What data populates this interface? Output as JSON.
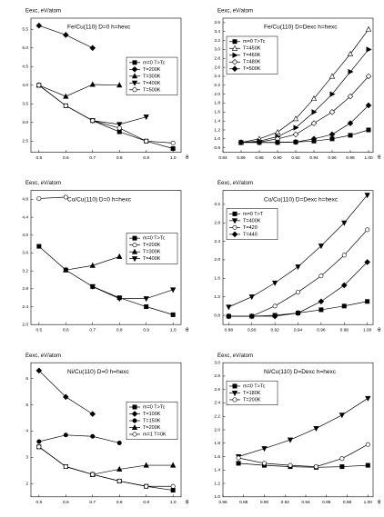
{
  "chart_data": [
    {
      "type": "line",
      "title": "Fe/Cu(110) D=0 h=hexc",
      "ylabel": "Eexc, eV/atom",
      "xlabel": "θ",
      "legend": "center right",
      "xlim": [
        0.47,
        1.03
      ],
      "ylim": [
        2.2,
        5.8
      ],
      "xticks": [
        0.5,
        0.6,
        0.7,
        0.8,
        0.9,
        {
          "value": 1,
          "label": "1.0"
        }
      ],
      "yticks": [
        2.5,
        {
          "value": 3,
          "label": "3.0"
        },
        3.5,
        {
          "value": 4,
          "label": "4.0"
        },
        4.5,
        {
          "value": 5,
          "label": "5.0"
        },
        5.5
      ],
      "series": [
        {
          "name": "m=0 T>Tc",
          "color": "#000000",
          "marker": "square",
          "filled": true,
          "x": [
            0.5,
            0.6,
            0.7,
            0.8,
            0.9,
            1.0
          ],
          "values": [
            4.0,
            3.45,
            3.05,
            2.75,
            2.5,
            2.3
          ]
        },
        {
          "name": "T=200K",
          "color": "#000000",
          "marker": "diamond",
          "filled": true,
          "x": [
            0.5,
            0.6,
            0.7
          ],
          "values": [
            5.6,
            5.35,
            5.0
          ]
        },
        {
          "name": "T=300K",
          "color": "#000000",
          "marker": "triangle-up",
          "filled": true,
          "x": [
            0.5,
            0.6,
            0.7,
            0.8
          ],
          "values": [
            4.0,
            3.7,
            4.02,
            4.0
          ]
        },
        {
          "name": "T=400K",
          "color": "#000000",
          "marker": "triangle-down",
          "filled": true,
          "x": [
            0.7,
            0.8,
            0.9
          ],
          "values": [
            3.05,
            2.95,
            3.15
          ]
        },
        {
          "name": "T=500K",
          "color": "#000000",
          "marker": "circle",
          "filled": false,
          "x": [
            0.5,
            0.6,
            0.7,
            0.8,
            0.9,
            1.0
          ],
          "values": [
            4.0,
            3.45,
            3.05,
            2.85,
            2.5,
            2.45
          ]
        }
      ]
    },
    {
      "type": "line",
      "title": "Fe/Cu(110) D=Dexc h=hexc",
      "ylabel": "Eexc, eV/atom",
      "xlabel": "θ",
      "legend": "upper left",
      "xlim": [
        0.84,
        1.005
      ],
      "ylim": [
        0.7,
        3.7
      ],
      "xticks": [
        0.84,
        0.86,
        0.88,
        {
          "value": 0.9,
          "label": "0.90"
        },
        0.92,
        0.94,
        0.96,
        0.98,
        {
          "value": 1,
          "label": "1.00"
        }
      ],
      "yticks": [
        0.8,
        {
          "value": 1,
          "label": "1.0"
        },
        1.2,
        1.4,
        1.6,
        1.8,
        {
          "value": 2,
          "label": "2.0"
        },
        2.2,
        2.4,
        2.6,
        2.8,
        {
          "value": 3,
          "label": "3.0"
        },
        3.2,
        3.4,
        3.6
      ],
      "series": [
        {
          "name": "m=0 T>Tc",
          "color": "#000000",
          "marker": "square",
          "filled": true,
          "x": [
            0.86,
            0.88,
            0.9,
            0.92,
            0.94,
            0.96,
            0.98,
            1.0
          ],
          "values": [
            0.92,
            0.92,
            0.92,
            0.93,
            0.95,
            1.0,
            1.08,
            1.2
          ]
        },
        {
          "name": "T=450K",
          "color": "#000000",
          "marker": "triangle-up",
          "filled": false,
          "x": [
            0.86,
            0.88,
            0.9,
            0.92,
            0.94,
            0.96,
            0.98,
            1.0
          ],
          "values": [
            0.92,
            1.0,
            1.15,
            1.45,
            1.9,
            2.4,
            2.9,
            3.45
          ]
        },
        {
          "name": "T=460K",
          "color": "#000000",
          "marker": "triangle-right",
          "filled": true,
          "x": [
            0.86,
            0.88,
            0.9,
            0.92,
            0.94,
            0.96,
            0.98,
            1.0
          ],
          "values": [
            0.92,
            0.95,
            1.05,
            1.25,
            1.6,
            2.0,
            2.5,
            3.0
          ]
        },
        {
          "name": "T=480K",
          "color": "#000000",
          "marker": "diamond",
          "filled": false,
          "x": [
            0.86,
            0.88,
            0.9,
            0.92,
            0.94,
            0.96,
            0.98,
            1.0
          ],
          "values": [
            0.92,
            0.93,
            1.0,
            1.1,
            1.35,
            1.6,
            1.95,
            2.4
          ]
        },
        {
          "name": "T=500K",
          "color": "#000000",
          "marker": "diamond",
          "filled": true,
          "x": [
            0.86,
            0.88,
            0.9,
            0.92,
            0.94,
            0.96,
            0.98,
            1.0
          ],
          "values": [
            0.92,
            0.92,
            0.92,
            0.93,
            1.0,
            1.1,
            1.35,
            1.75
          ]
        }
      ]
    },
    {
      "type": "line",
      "title": "Co/Cu(110) D=0 h=hexc",
      "ylabel": "Eexc, eV/atom",
      "xlabel": "θ",
      "legend": "center right",
      "xlim": [
        0.47,
        1.03
      ],
      "ylim": [
        2.0,
        5.0
      ],
      "xticks": [
        0.5,
        0.6,
        0.7,
        0.8,
        0.9,
        {
          "value": 1,
          "label": "1.0"
        }
      ],
      "yticks": [
        {
          "value": 2,
          "label": "2.0"
        },
        2.4,
        2.8,
        3.2,
        3.6,
        {
          "value": 4,
          "label": "4.0"
        },
        4.4,
        4.8
      ],
      "series": [
        {
          "name": "m=0 T>Tc",
          "color": "#000000",
          "marker": "square",
          "filled": true,
          "x": [
            0.5,
            0.6,
            0.7,
            0.8,
            0.9,
            1.0
          ],
          "values": [
            3.75,
            3.22,
            2.85,
            2.6,
            2.4,
            2.22
          ]
        },
        {
          "name": "T=200K",
          "color": "#000000",
          "marker": "circle",
          "filled": false,
          "x": [
            0.5,
            0.6
          ],
          "values": [
            4.82,
            4.85
          ]
        },
        {
          "name": "T=300K",
          "color": "#000000",
          "marker": "triangle-up",
          "filled": true,
          "x": [
            0.6,
            0.7,
            0.8
          ],
          "values": [
            3.22,
            3.32,
            3.52
          ]
        },
        {
          "name": "T=400K",
          "color": "#000000",
          "marker": "triangle-down",
          "filled": true,
          "x": [
            0.7,
            0.8,
            0.9,
            1.0
          ],
          "values": [
            2.85,
            2.58,
            2.58,
            2.78
          ]
        }
      ]
    },
    {
      "type": "line",
      "title": "Co/Cu(110) D=Dexc h=hexc",
      "ylabel": "Eexc, eV/atom",
      "xlabel": "θ",
      "legend": "upper left",
      "xlim": [
        0.875,
        1.005
      ],
      "ylim": [
        0.6,
        3.5
      ],
      "xticks": [
        0.88,
        {
          "value": 0.9,
          "label": "0.90"
        },
        0.92,
        0.94,
        0.96,
        0.98,
        {
          "value": 1,
          "label": "1.00"
        }
      ],
      "yticks": [
        0.8,
        1.2,
        1.6,
        {
          "value": 2,
          "label": "2.0"
        },
        2.4,
        2.8,
        3.2
      ],
      "series": [
        {
          "name": "m=0 T>T",
          "color": "#000000",
          "marker": "square",
          "filled": true,
          "x": [
            0.88,
            0.9,
            0.92,
            0.94,
            0.96,
            0.98,
            1.0
          ],
          "values": [
            0.78,
            0.78,
            0.8,
            0.85,
            0.92,
            1.0,
            1.1
          ]
        },
        {
          "name": "T=400K",
          "color": "#000000",
          "marker": "triangle-down",
          "filled": true,
          "x": [
            0.88,
            0.9,
            0.92,
            0.94,
            0.96,
            0.98,
            1.0
          ],
          "values": [
            0.98,
            1.2,
            1.5,
            1.85,
            2.3,
            2.8,
            3.4
          ]
        },
        {
          "name": "T=420",
          "color": "#000000",
          "marker": "circle",
          "filled": false,
          "x": [
            0.88,
            0.9,
            0.92,
            0.94,
            0.96,
            0.98,
            1.0
          ],
          "values": [
            0.78,
            0.78,
            1.0,
            1.3,
            1.65,
            2.1,
            2.65
          ]
        },
        {
          "name": "T=440",
          "color": "#000000",
          "marker": "diamond",
          "filled": true,
          "x": [
            0.88,
            0.9,
            0.92,
            0.94,
            0.96,
            0.98,
            1.0
          ],
          "values": [
            0.78,
            0.78,
            0.78,
            0.85,
            1.1,
            1.45,
            1.95
          ]
        }
      ]
    },
    {
      "type": "line",
      "title": "Ni/Cu(110) D=0 h=hexc",
      "ylabel": "Eexc, eV/atom",
      "xlabel": "θ",
      "legend": "center right",
      "xlim": [
        0.47,
        1.03
      ],
      "ylim": [
        1.5,
        6.6
      ],
      "xticks": [
        0.5,
        0.6,
        0.7,
        0.8,
        0.9,
        {
          "value": 1,
          "label": "1.0"
        }
      ],
      "yticks": [
        2,
        3,
        4,
        5,
        6
      ],
      "series": [
        {
          "name": "m=0 T>Tc",
          "color": "#000000",
          "marker": "square",
          "filled": true,
          "x": [
            0.5,
            0.6,
            0.7,
            0.8,
            0.9,
            1.0
          ],
          "values": [
            3.4,
            2.65,
            2.35,
            2.1,
            1.9,
            1.75
          ]
        },
        {
          "name": "T=100K",
          "color": "#000000",
          "marker": "diamond",
          "filled": true,
          "x": [
            0.5,
            0.6,
            0.7
          ],
          "values": [
            6.3,
            5.3,
            4.65
          ]
        },
        {
          "name": "T=150K",
          "color": "#000000",
          "marker": "circle",
          "filled": true,
          "x": [
            0.5,
            0.6,
            0.7,
            0.8
          ],
          "values": [
            3.6,
            3.85,
            3.8,
            3.55
          ]
        },
        {
          "name": "T=200K",
          "color": "#000000",
          "marker": "triangle-up",
          "filled": true,
          "x": [
            0.7,
            0.8,
            0.9,
            1.0
          ],
          "values": [
            2.35,
            2.55,
            2.7,
            2.7
          ]
        },
        {
          "name": "m=1 T=0K",
          "color": "#000000",
          "marker": "circle",
          "filled": false,
          "x": [
            0.5,
            0.6,
            0.7,
            0.8,
            0.9,
            1.0
          ],
          "values": [
            3.4,
            2.65,
            2.35,
            2.1,
            1.9,
            1.9
          ]
        }
      ]
    },
    {
      "type": "line",
      "title": "Ni/Cu(110) D=Dexc h=hexc",
      "ylabel": "Eexc, eV/atom",
      "xlabel": "θ",
      "legend": "upper left",
      "xlim": [
        0.86,
        1.005
      ],
      "ylim": [
        1.0,
        3.0
      ],
      "xticks": [
        0.86,
        0.88,
        {
          "value": 0.9,
          "label": "0.90"
        },
        0.92,
        0.94,
        0.96,
        0.98,
        {
          "value": 1,
          "label": "1.00"
        }
      ],
      "yticks": [
        {
          "value": 1,
          "label": "1.0"
        },
        1.2,
        1.4,
        1.6,
        1.8,
        {
          "value": 2,
          "label": "2.0"
        },
        2.2,
        2.4,
        2.6,
        2.8,
        {
          "value": 3,
          "label": "3.0"
        }
      ],
      "series": [
        {
          "name": "m=0 T>Tc",
          "color": "#000000",
          "marker": "square",
          "filled": true,
          "x": [
            0.875,
            0.9,
            0.925,
            0.95,
            0.975,
            1.0
          ],
          "values": [
            1.5,
            1.47,
            1.45,
            1.44,
            1.45,
            1.47
          ]
        },
        {
          "name": "T=180K",
          "color": "#000000",
          "marker": "triangle-down",
          "filled": true,
          "x": [
            0.875,
            0.9,
            0.925,
            0.95,
            0.975,
            1.0
          ],
          "values": [
            1.6,
            1.72,
            1.85,
            2.02,
            2.22,
            2.47
          ]
        },
        {
          "name": "T=200K",
          "color": "#000000",
          "marker": "circle",
          "filled": false,
          "x": [
            0.875,
            0.9,
            0.925,
            0.95,
            0.975,
            1.0
          ],
          "values": [
            1.58,
            1.5,
            1.47,
            1.45,
            1.57,
            1.78
          ]
        }
      ]
    }
  ]
}
